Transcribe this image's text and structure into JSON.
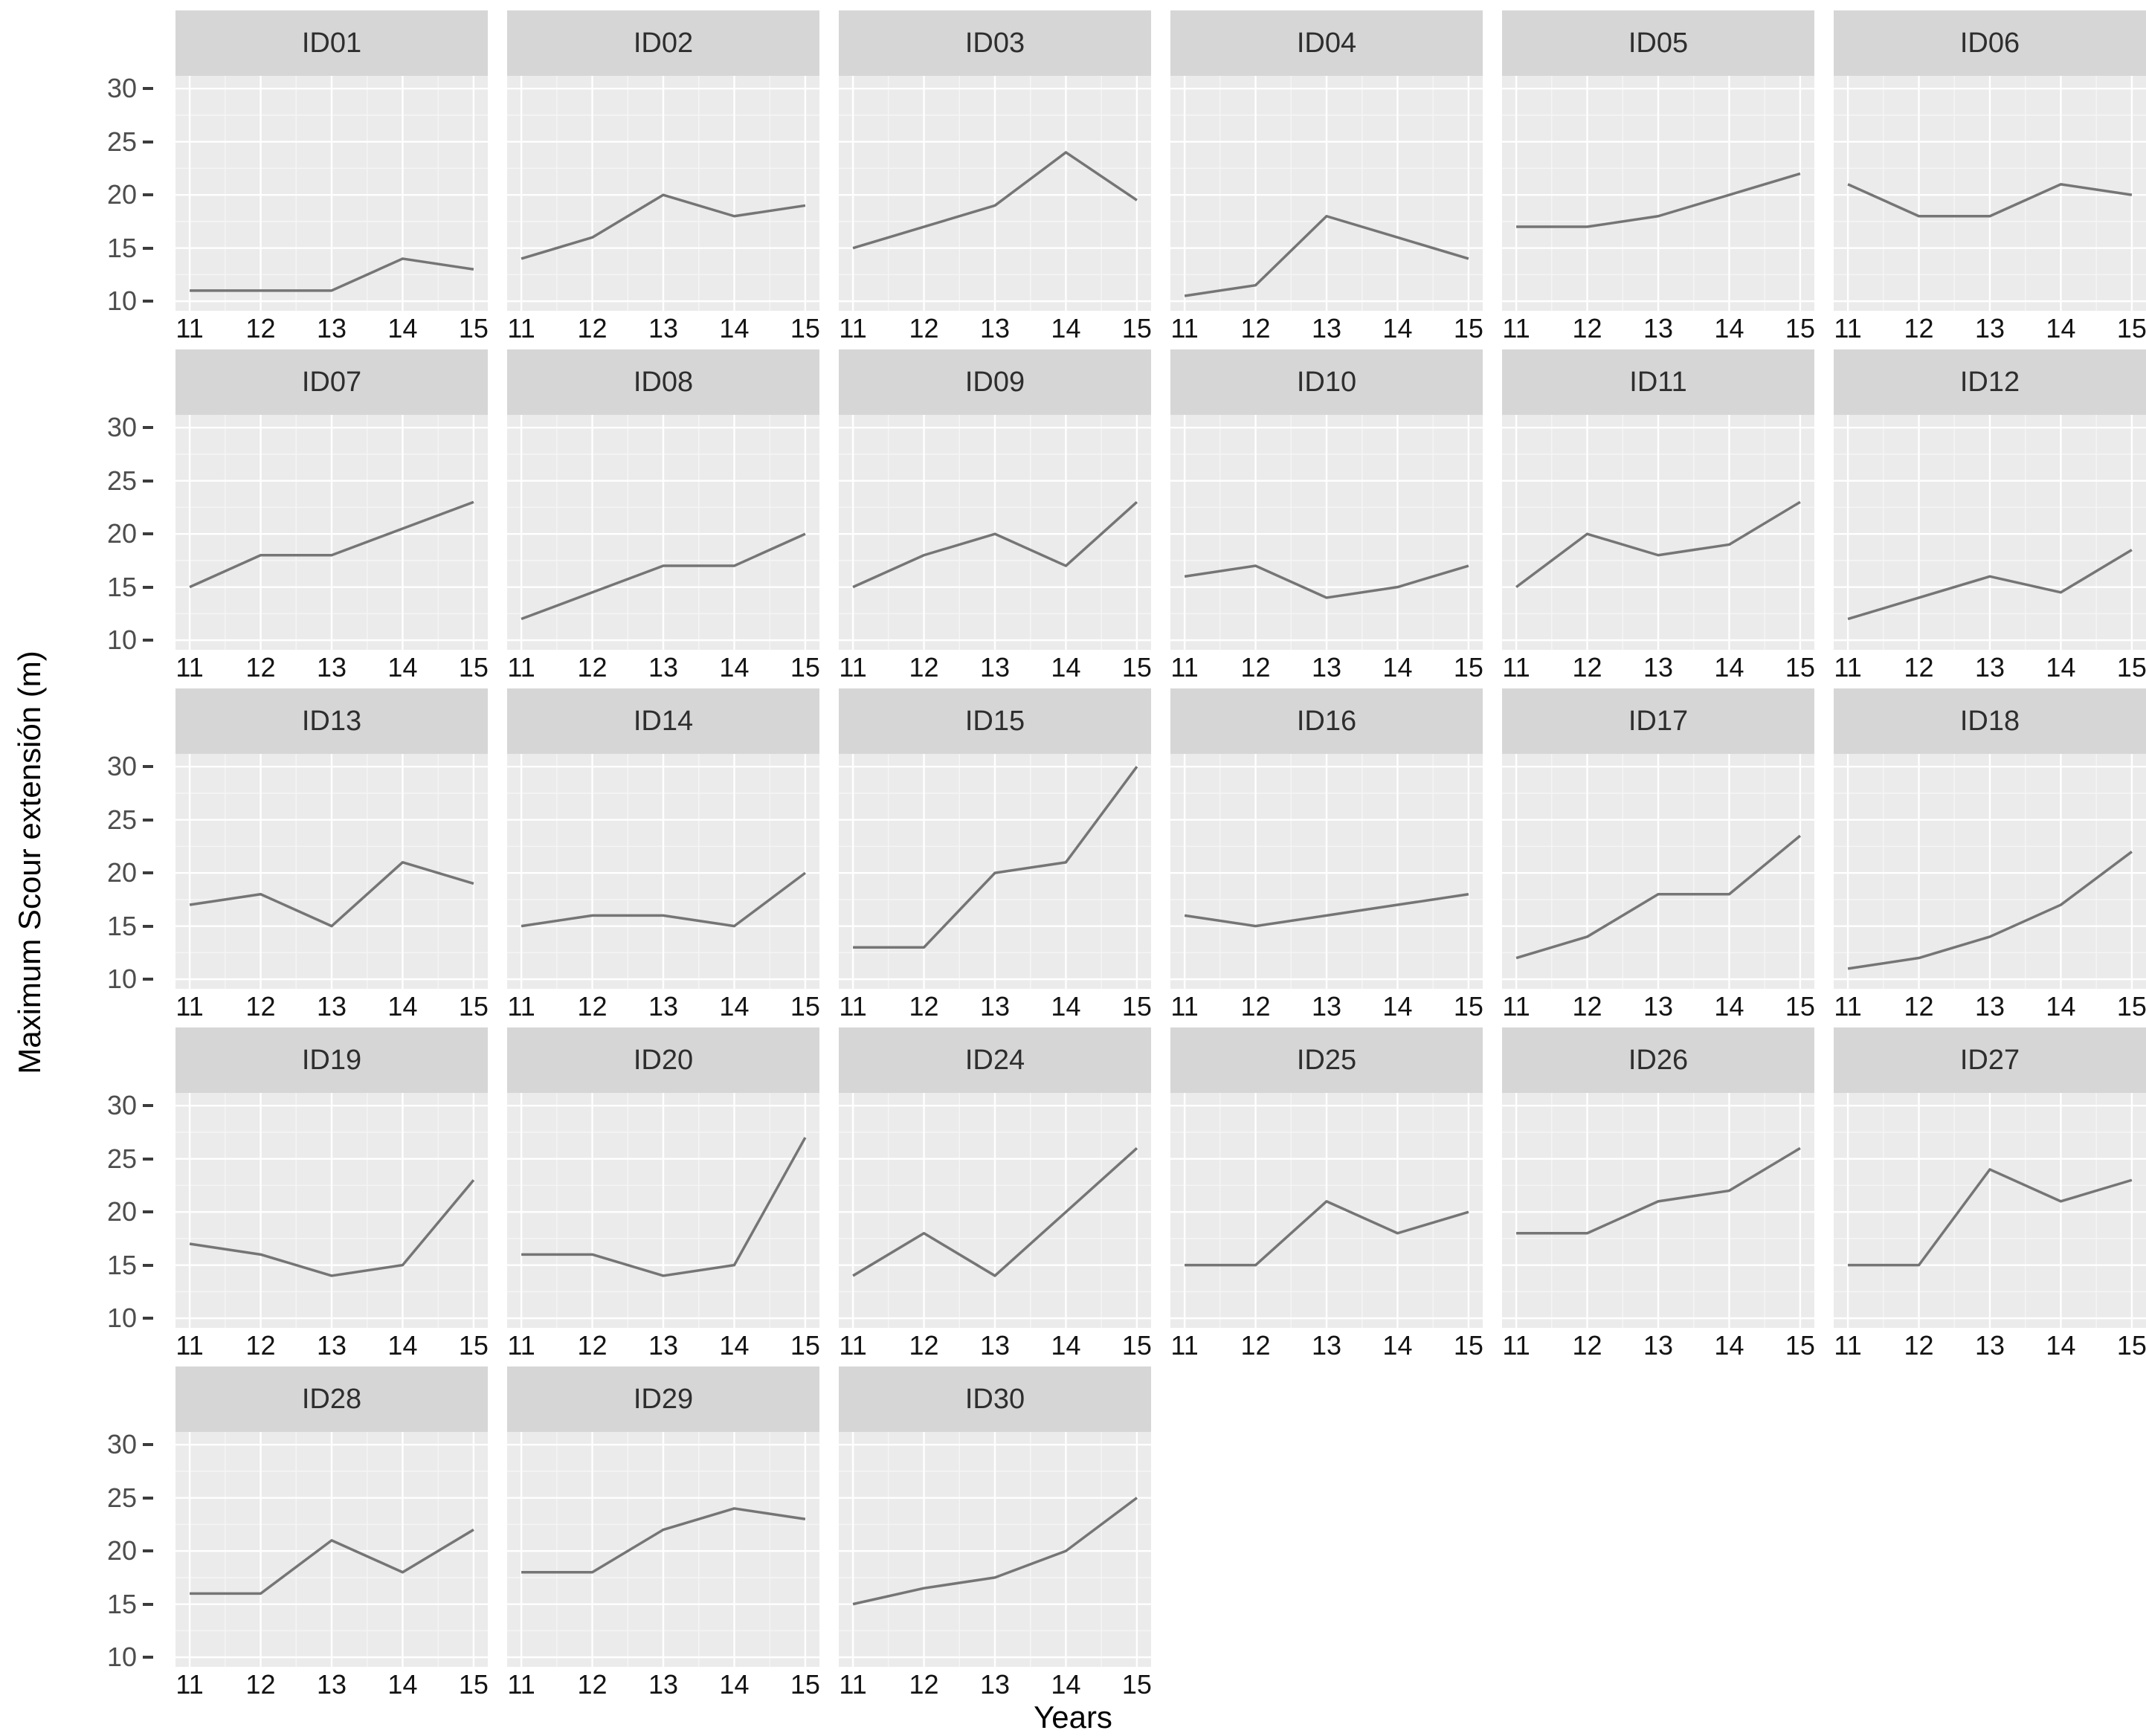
{
  "chart_data": {
    "type": "line",
    "title": "",
    "xlabel": "Years",
    "ylabel": "Maximum Scour extensión (m)",
    "x": [
      11,
      12,
      13,
      14,
      15
    ],
    "x_tick_labels": [
      "11",
      "12",
      "13",
      "14",
      "15"
    ],
    "yticks": [
      10,
      15,
      20,
      25,
      30
    ],
    "y_minor_ticks": [
      12.5,
      17.5,
      22.5,
      27.5
    ],
    "x_minor_ticks": [
      11.5,
      12.5,
      13.5,
      14.5
    ],
    "xlim": [
      10.8,
      15.2
    ],
    "ylim": [
      9.1,
      31.2
    ],
    "grid": true,
    "legend": "none",
    "facets_per_row": 6,
    "facets": [
      {
        "id": "ID01",
        "values": [
          11,
          11,
          11,
          14,
          13
        ]
      },
      {
        "id": "ID02",
        "values": [
          14,
          16,
          20,
          18,
          19
        ]
      },
      {
        "id": "ID03",
        "values": [
          15,
          17,
          19,
          24,
          19.5
        ]
      },
      {
        "id": "ID04",
        "values": [
          10.5,
          11.5,
          18,
          16,
          14
        ]
      },
      {
        "id": "ID05",
        "values": [
          17,
          17,
          18,
          20,
          22
        ]
      },
      {
        "id": "ID06",
        "values": [
          21,
          18,
          18,
          21,
          20
        ]
      },
      {
        "id": "ID07",
        "values": [
          15,
          18,
          18,
          20.5,
          23
        ]
      },
      {
        "id": "ID08",
        "values": [
          12,
          14.5,
          17,
          17,
          20
        ]
      },
      {
        "id": "ID09",
        "values": [
          15,
          18,
          20,
          17,
          23
        ]
      },
      {
        "id": "ID10",
        "values": [
          16,
          17,
          14,
          15,
          17
        ]
      },
      {
        "id": "ID11",
        "values": [
          15,
          20,
          18,
          19,
          23
        ]
      },
      {
        "id": "ID12",
        "values": [
          12,
          14,
          16,
          14.5,
          18.5
        ]
      },
      {
        "id": "ID13",
        "values": [
          17,
          18,
          15,
          21,
          19
        ]
      },
      {
        "id": "ID14",
        "values": [
          15,
          16,
          16,
          15,
          20
        ]
      },
      {
        "id": "ID15",
        "values": [
          13,
          13,
          20,
          21,
          30
        ]
      },
      {
        "id": "ID16",
        "values": [
          16,
          15,
          16,
          17,
          18
        ]
      },
      {
        "id": "ID17",
        "values": [
          12,
          14,
          18,
          18,
          23.5
        ]
      },
      {
        "id": "ID18",
        "values": [
          11,
          12,
          14,
          17,
          22
        ]
      },
      {
        "id": "ID19",
        "values": [
          17,
          16,
          14,
          15,
          23
        ]
      },
      {
        "id": "ID20",
        "values": [
          16,
          16,
          14,
          15,
          27
        ]
      },
      {
        "id": "ID24",
        "values": [
          14,
          18,
          14,
          20,
          26
        ]
      },
      {
        "id": "ID25",
        "values": [
          15,
          15,
          21,
          18,
          20
        ]
      },
      {
        "id": "ID26",
        "values": [
          18,
          18,
          21,
          22,
          26
        ]
      },
      {
        "id": "ID27",
        "values": [
          15,
          15,
          24,
          21,
          23
        ]
      },
      {
        "id": "ID28",
        "values": [
          16,
          16,
          21,
          18,
          22
        ]
      },
      {
        "id": "ID29",
        "values": [
          18,
          18,
          22,
          24,
          23
        ]
      },
      {
        "id": "ID30",
        "values": [
          15,
          16.5,
          17.5,
          20,
          25
        ]
      }
    ],
    "colors": {
      "strip_bg": "#d6d6d6",
      "strip_text": "#2e2e2e",
      "panel_bg": "#ebebeb",
      "grid_major": "#ffffff",
      "grid_minor": "#f5f5f5",
      "series_line": "#757575",
      "y_tick_text": "#4d4d4d",
      "x_tick_text": "#141414",
      "tick_mark": "#3c3c3c"
    }
  }
}
